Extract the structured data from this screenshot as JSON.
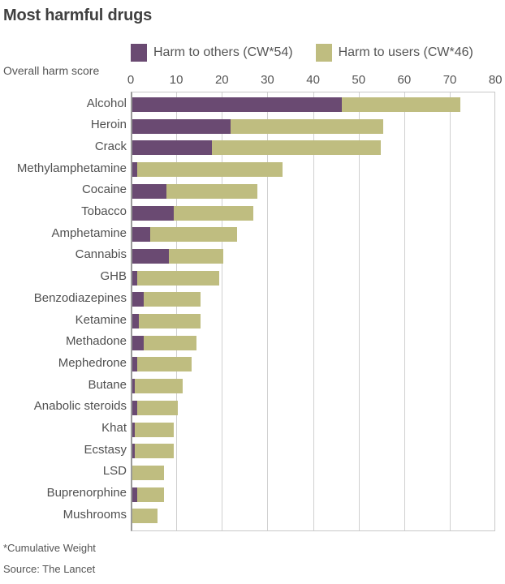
{
  "header": {
    "title": "Most harmful drugs",
    "y_axis_caption": "Overall harm score"
  },
  "legend": [
    {
      "label": "Harm to others (CW*54)",
      "color": "#6a4a72"
    },
    {
      "label": "Harm to users (CW*46)",
      "color": "#bfbd80"
    }
  ],
  "footer": {
    "note": "*Cumulative Weight",
    "source": "Source: The Lancet"
  },
  "chart_data": {
    "type": "bar",
    "orientation": "horizontal",
    "stacked": true,
    "title": "Most harmful drugs",
    "xlabel": "Overall harm score",
    "ylabel": "",
    "xlim": [
      0,
      80
    ],
    "xticks": [
      0,
      10,
      20,
      30,
      40,
      50,
      60,
      70,
      80
    ],
    "grid": true,
    "legend_position": "top",
    "categories": [
      "Alcohol",
      "Heroin",
      "Crack",
      "Methylamphetamine",
      "Cocaine",
      "Tobacco",
      "Amphetamine",
      "Cannabis",
      "GHB",
      "Benzodiazepines",
      "Ketamine",
      "Methadone",
      "Mephedrone",
      "Butane",
      "Anabolic steroids",
      "Khat",
      "Ecstasy",
      "LSD",
      "Buprenorphine",
      "Mushrooms"
    ],
    "series": [
      {
        "name": "Harm to others (CW*54)",
        "color": "#6a4a72",
        "values": [
          46,
          21.5,
          17.5,
          1,
          7.5,
          9,
          4,
          8,
          1,
          2.5,
          1.5,
          2.5,
          1,
          0.5,
          1,
          0.5,
          0.5,
          0,
          1,
          0
        ]
      },
      {
        "name": "Harm to users (CW*46)",
        "color": "#bfbd80",
        "values": [
          26,
          33.5,
          37,
          32,
          20,
          17.5,
          19,
          12,
          18,
          12.5,
          13.5,
          11.5,
          12,
          10.5,
          9,
          8.5,
          8.5,
          7,
          6,
          5.5
        ]
      }
    ],
    "totals": [
      72,
      55,
      54.5,
      33,
      27.5,
      26.5,
      23,
      20,
      19,
      15,
      15,
      14,
      13,
      11,
      10,
      9,
      9,
      7,
      7,
      5.5
    ]
  }
}
